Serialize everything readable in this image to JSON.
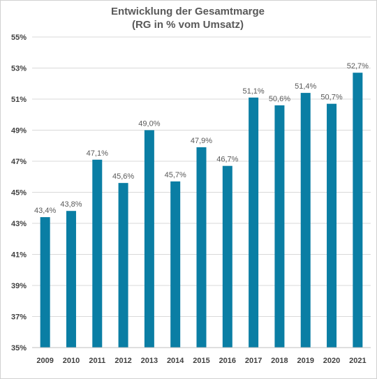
{
  "chart_data": {
    "type": "bar",
    "title": "Entwicklung der Gesamtmarge",
    "subtitle": "(RG in % vom Umsatz)",
    "xlabel": "",
    "ylabel": "",
    "categories": [
      "2009",
      "2010",
      "2011",
      "2012",
      "2013",
      "2014",
      "2015",
      "2016",
      "2017",
      "2018",
      "2019",
      "2020",
      "2021"
    ],
    "values": [
      43.4,
      43.8,
      47.1,
      45.6,
      49.0,
      45.7,
      47.9,
      46.7,
      51.1,
      50.6,
      51.4,
      50.7,
      52.7
    ],
    "data_labels": [
      "43,4%",
      "43,8%",
      "47,1%",
      "45,6%",
      "49,0%",
      "45,7%",
      "47,9%",
      "46,7%",
      "51,1%",
      "50,6%",
      "51,4%",
      "50,7%",
      "52,7%"
    ],
    "ylim": [
      35,
      55
    ],
    "y_ticks": [
      35,
      37,
      39,
      41,
      43,
      45,
      47,
      49,
      51,
      53,
      55
    ],
    "y_tick_labels": [
      "35%",
      "37%",
      "39%",
      "41%",
      "43%",
      "45%",
      "47%",
      "49%",
      "51%",
      "53%",
      "55%"
    ],
    "grid": true,
    "legend": "none",
    "colors": {
      "bar": "#0a7ea4",
      "grid": "#d9d9d9",
      "axis": "#bfbfbf"
    }
  }
}
